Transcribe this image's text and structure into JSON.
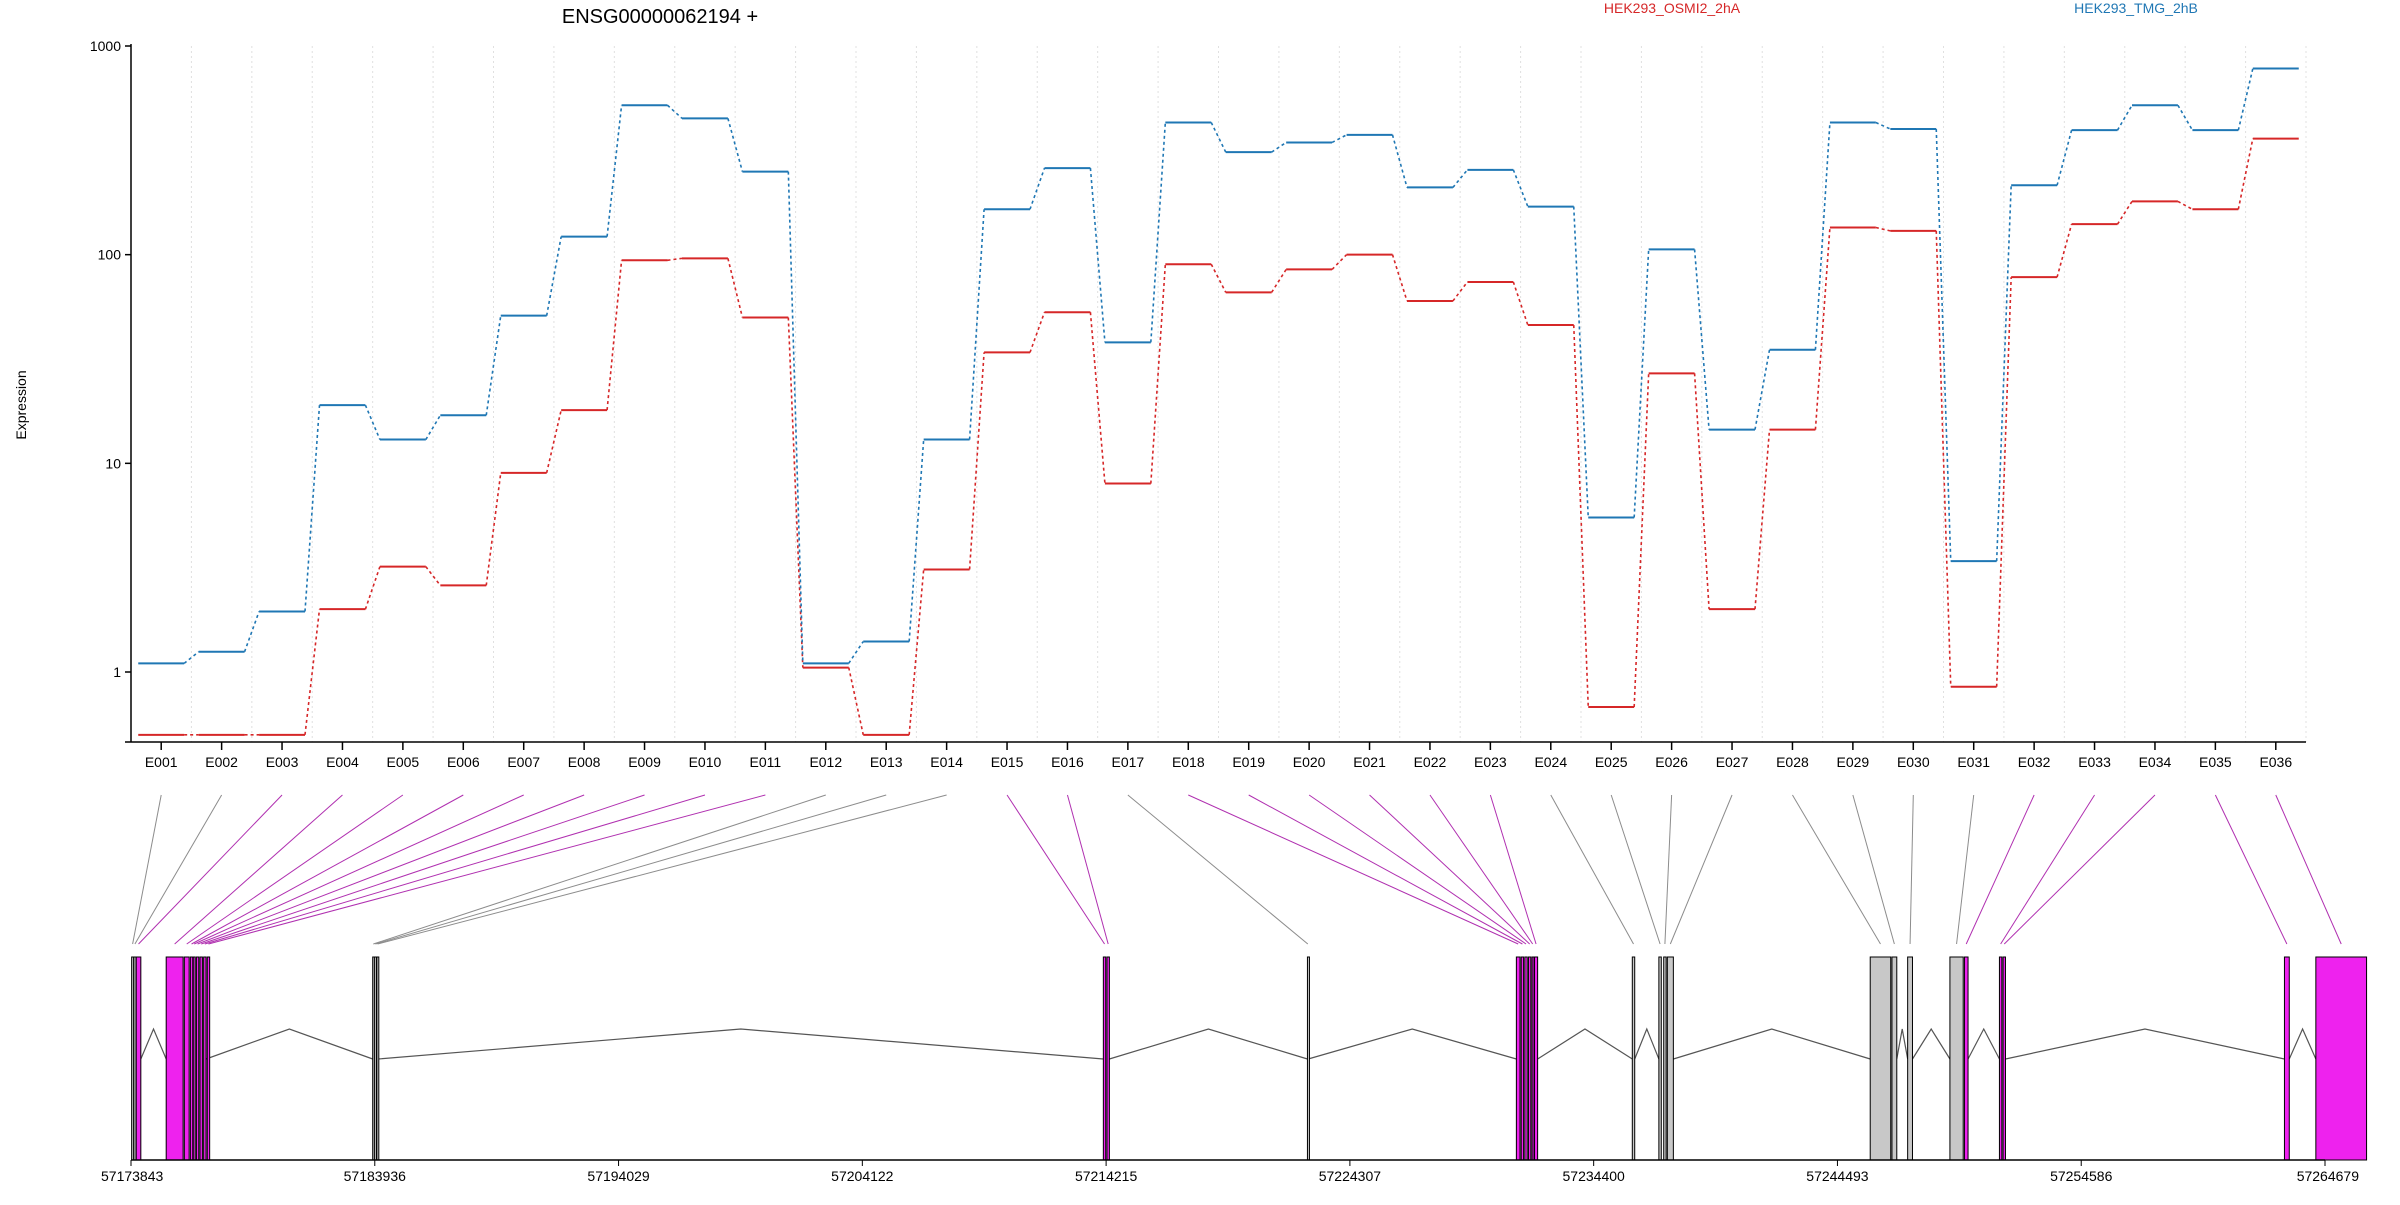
{
  "chart_data": {
    "type": "line",
    "title": "ENSG00000062194 +",
    "ylabel": "Expression",
    "xlabel": "",
    "y_scale": "log",
    "ylim": [
      0.5,
      1000
    ],
    "y_ticks": [
      1,
      10,
      100,
      1000
    ],
    "y_tick_labels": [
      "1",
      "10",
      "100",
      "1000"
    ],
    "grid": "vertical dotted lines at exon boundaries",
    "legend_placement": "top",
    "categories": [
      "E001",
      "E002",
      "E003",
      "E004",
      "E005",
      "E006",
      "E007",
      "E008",
      "E009",
      "E010",
      "E011",
      "E012",
      "E013",
      "E014",
      "E015",
      "E016",
      "E017",
      "E018",
      "E019",
      "E020",
      "E021",
      "E022",
      "E023",
      "E024",
      "E025",
      "E026",
      "E027",
      "E028",
      "E029",
      "E030",
      "E031",
      "E032",
      "E033",
      "E034",
      "E035",
      "E036"
    ],
    "series": [
      {
        "name": "HEK293_OSMI2_2hA",
        "color": "#d62728",
        "values": [
          0.5,
          0.5,
          0.5,
          2,
          3.2,
          2.6,
          9,
          18,
          94,
          96,
          50,
          1.05,
          0.5,
          3.1,
          34,
          53,
          8,
          90,
          66,
          85,
          100,
          60,
          74,
          46,
          0.68,
          27,
          2,
          14.5,
          135,
          130,
          0.85,
          78,
          140,
          180,
          165,
          360
        ]
      },
      {
        "name": "HEK293_TMG_2hB",
        "color": "#1f77b4",
        "values": [
          1.1,
          1.25,
          1.95,
          19,
          13,
          17,
          51,
          122,
          520,
          450,
          250,
          1.1,
          1.4,
          13,
          165,
          260,
          38,
          430,
          310,
          345,
          375,
          210,
          255,
          170,
          5.5,
          106,
          14.5,
          35,
          430,
          400,
          3.4,
          215,
          395,
          520,
          395,
          780
        ]
      }
    ],
    "gene_track": {
      "axis_ticks": [
        "57173843",
        "57183936",
        "57194029",
        "57204122",
        "57214215",
        "57224307",
        "57234400",
        "57244493",
        "57254586",
        "57264679"
      ],
      "range": [
        57173843,
        57264679
      ],
      "colors": {
        "highlight": "#ee22ee",
        "normal": "#c8c8c8",
        "outline": "#000000",
        "link_highlight": "#b030b0",
        "link_normal": "#8c8c8c"
      }
    }
  }
}
